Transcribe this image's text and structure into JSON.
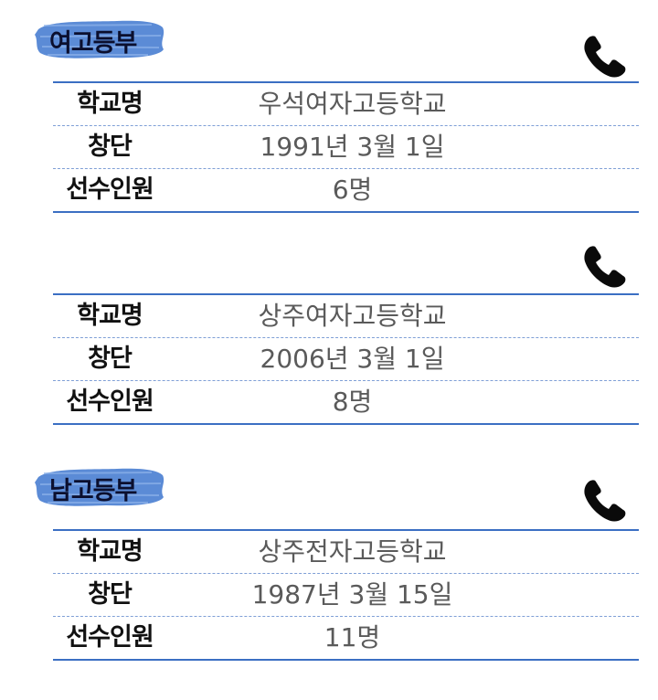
{
  "sections": [
    {
      "badge": "여고등부",
      "rows": [
        {
          "label": "학교명",
          "value": "우석여자고등학교"
        },
        {
          "label": "창단",
          "value": "1991년 3월 1일"
        },
        {
          "label": "선수인원",
          "value": "6명"
        }
      ]
    },
    {
      "badge": "",
      "rows": [
        {
          "label": "학교명",
          "value": "상주여자고등학교"
        },
        {
          "label": "창단",
          "value": "2006년 3월 1일"
        },
        {
          "label": "선수인원",
          "value": "8명"
        }
      ]
    },
    {
      "badge": "남고등부",
      "rows": [
        {
          "label": "학교명",
          "value": "상주전자고등학교"
        },
        {
          "label": "창단",
          "value": "1987년 3월 15일"
        },
        {
          "label": "선수인원",
          "value": "11명"
        }
      ]
    }
  ],
  "colors": {
    "accent": "#3b6fc3",
    "badge_brush": "#5b8bd6",
    "label": "#111111",
    "value": "#5a5a5a"
  },
  "icons": {
    "phone": "phone-icon",
    "badge_background": "brush-stroke"
  }
}
